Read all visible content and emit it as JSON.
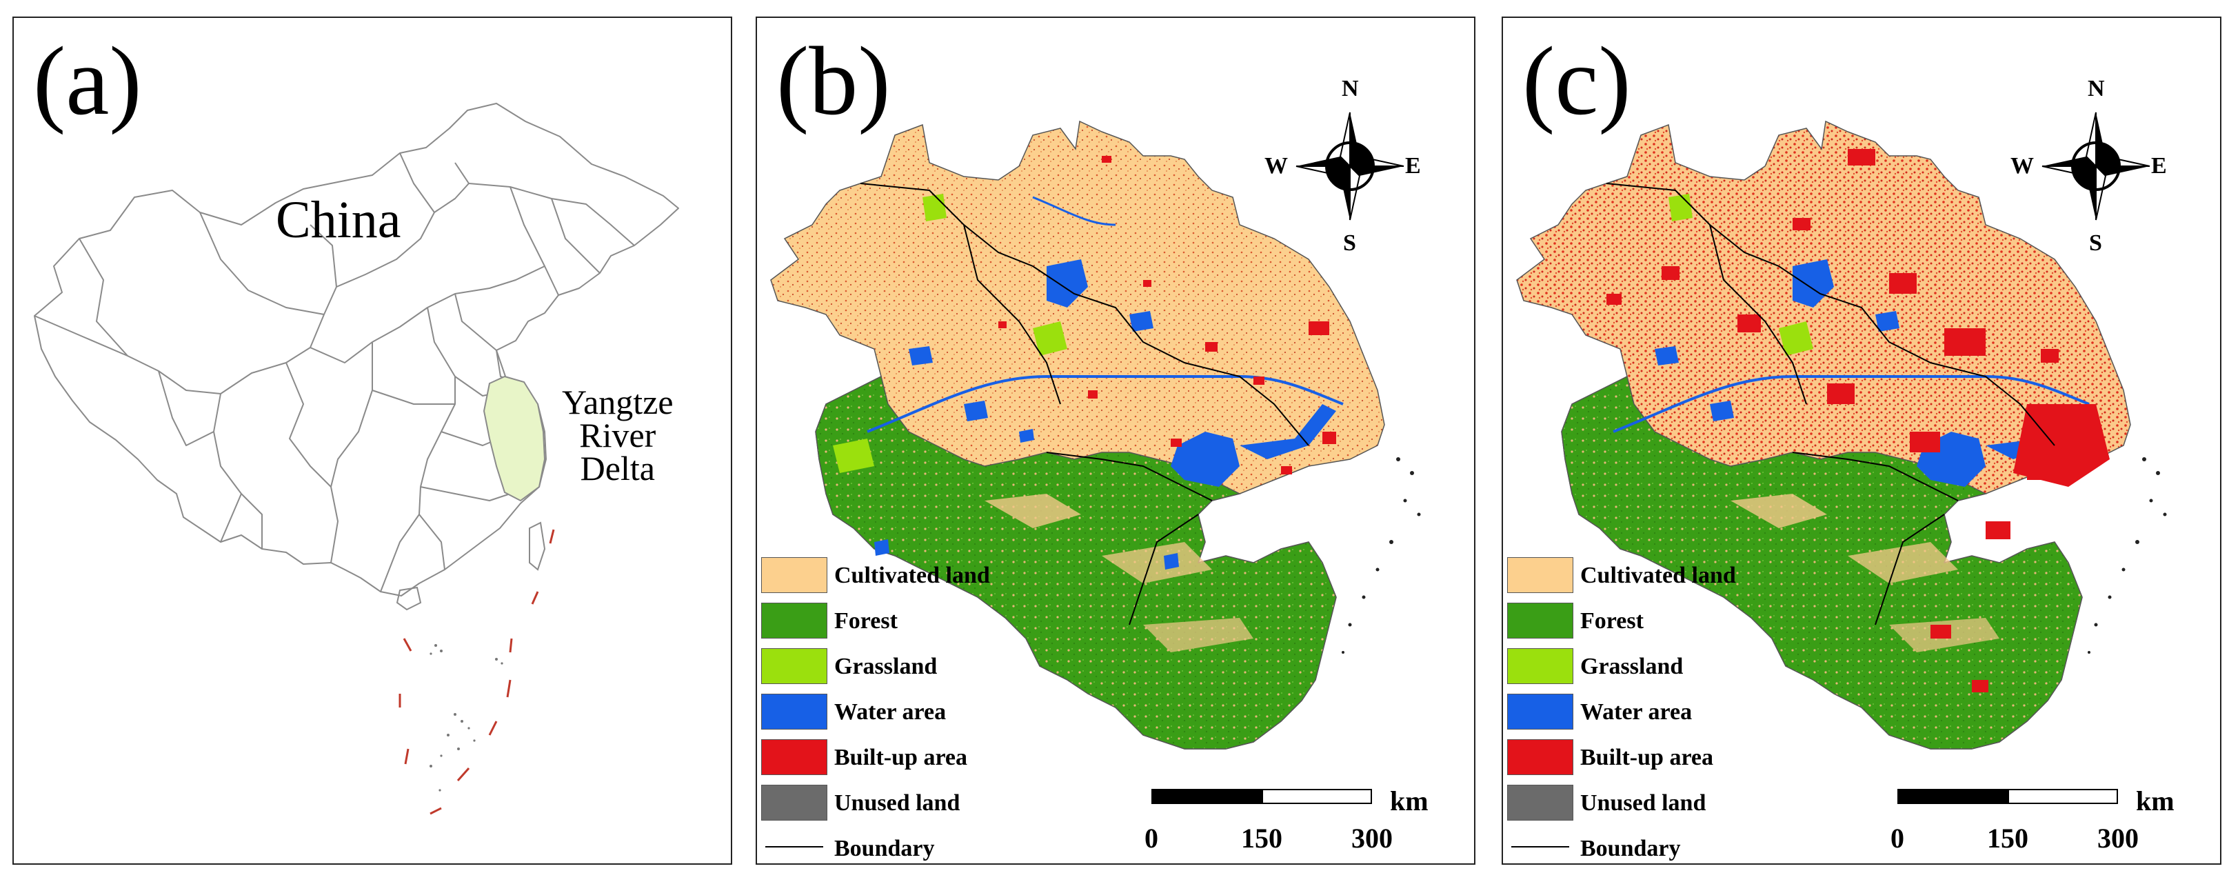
{
  "panels": [
    {
      "label": "(a)",
      "country": "China",
      "region": [
        "Yangtze",
        "River",
        "Delta"
      ]
    },
    {
      "label": "(b)"
    },
    {
      "label": "(c)"
    }
  ],
  "compass": {
    "north": "N",
    "south": "S",
    "east": "E",
    "west": "W"
  },
  "legend": [
    {
      "label": "Cultivated land",
      "color": "#FCD08E"
    },
    {
      "label": "Forest",
      "color": "#3A9E16"
    },
    {
      "label": "Grassland",
      "color": "#9BE00D"
    },
    {
      "label": "Water area",
      "color": "#1760E6"
    },
    {
      "label": "Built-up area",
      "color": "#E3131A"
    },
    {
      "label": "Unused land",
      "color": "#6B6B6B"
    },
    {
      "label": "Boundary",
      "color": "#000000"
    }
  ],
  "scale_bar": {
    "ticks": [
      "0",
      "150",
      "300"
    ],
    "unit": "km"
  },
  "colors": {
    "highlight": "#E8F5C8",
    "outline": "#8A8A8A",
    "dashed_line": "#C0392B"
  }
}
